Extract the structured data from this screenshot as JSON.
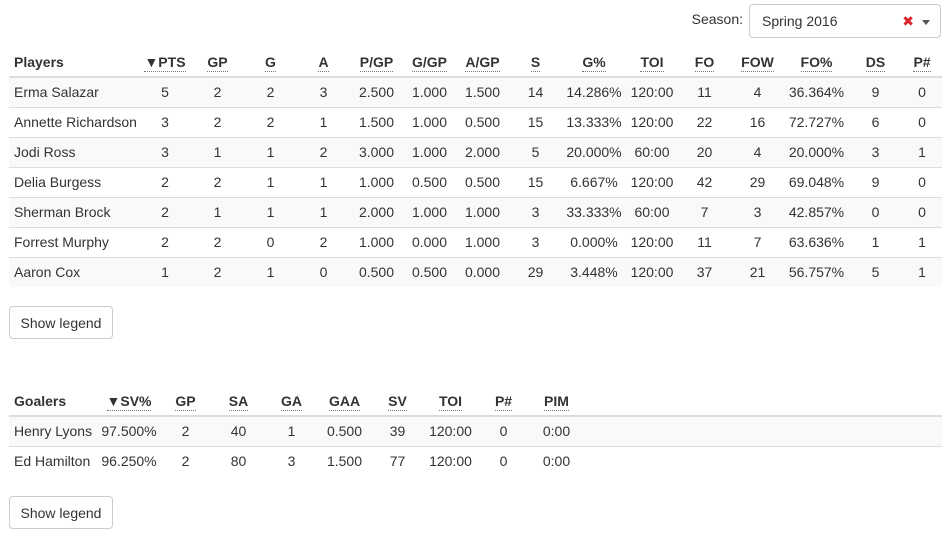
{
  "season": {
    "label": "Season:",
    "selected": "Spring 2016"
  },
  "players": {
    "columns": [
      "Players",
      "▼PTS",
      "GP",
      "G",
      "A",
      "P/GP",
      "G/GP",
      "A/GP",
      "S",
      "G%",
      "TOI",
      "FO",
      "FOW",
      "FO%",
      "DS",
      "P#"
    ],
    "rows": [
      [
        "Erma Salazar",
        "5",
        "2",
        "2",
        "3",
        "2.500",
        "1.000",
        "1.500",
        "14",
        "14.286%",
        "120:00",
        "11",
        "4",
        "36.364%",
        "9",
        "0"
      ],
      [
        "Annette Richardson",
        "3",
        "2",
        "2",
        "1",
        "1.500",
        "1.000",
        "0.500",
        "15",
        "13.333%",
        "120:00",
        "22",
        "16",
        "72.727%",
        "6",
        "0"
      ],
      [
        "Jodi Ross",
        "3",
        "1",
        "1",
        "2",
        "3.000",
        "1.000",
        "2.000",
        "5",
        "20.000%",
        "60:00",
        "20",
        "4",
        "20.000%",
        "3",
        "1"
      ],
      [
        "Delia Burgess",
        "2",
        "2",
        "1",
        "1",
        "1.000",
        "0.500",
        "0.500",
        "15",
        "6.667%",
        "120:00",
        "42",
        "29",
        "69.048%",
        "9",
        "0"
      ],
      [
        "Sherman Brock",
        "2",
        "1",
        "1",
        "1",
        "2.000",
        "1.000",
        "1.000",
        "3",
        "33.333%",
        "60:00",
        "7",
        "3",
        "42.857%",
        "0",
        "0"
      ],
      [
        "Forrest Murphy",
        "2",
        "2",
        "0",
        "2",
        "1.000",
        "0.000",
        "1.000",
        "3",
        "0.000%",
        "120:00",
        "11",
        "7",
        "63.636%",
        "1",
        "1"
      ],
      [
        "Aaron Cox",
        "1",
        "2",
        "1",
        "0",
        "0.500",
        "0.500",
        "0.000",
        "29",
        "3.448%",
        "120:00",
        "37",
        "21",
        "56.757%",
        "5",
        "1"
      ]
    ],
    "legend_button": "Show legend"
  },
  "goalers": {
    "columns": [
      "Goalers",
      "▼SV%",
      "GP",
      "SA",
      "GA",
      "GAA",
      "SV",
      "TOI",
      "P#",
      "PIM"
    ],
    "rows": [
      [
        "Henry Lyons",
        "97.500%",
        "2",
        "40",
        "1",
        "0.500",
        "39",
        "120:00",
        "0",
        "0:00"
      ],
      [
        "Ed Hamilton",
        "96.250%",
        "2",
        "80",
        "3",
        "1.500",
        "77",
        "120:00",
        "0",
        "0:00"
      ]
    ],
    "legend_button": "Show legend"
  },
  "colors": {
    "clear_icon": "#d9232d",
    "stripe": "#f9f9f9",
    "border": "#dddddd"
  }
}
